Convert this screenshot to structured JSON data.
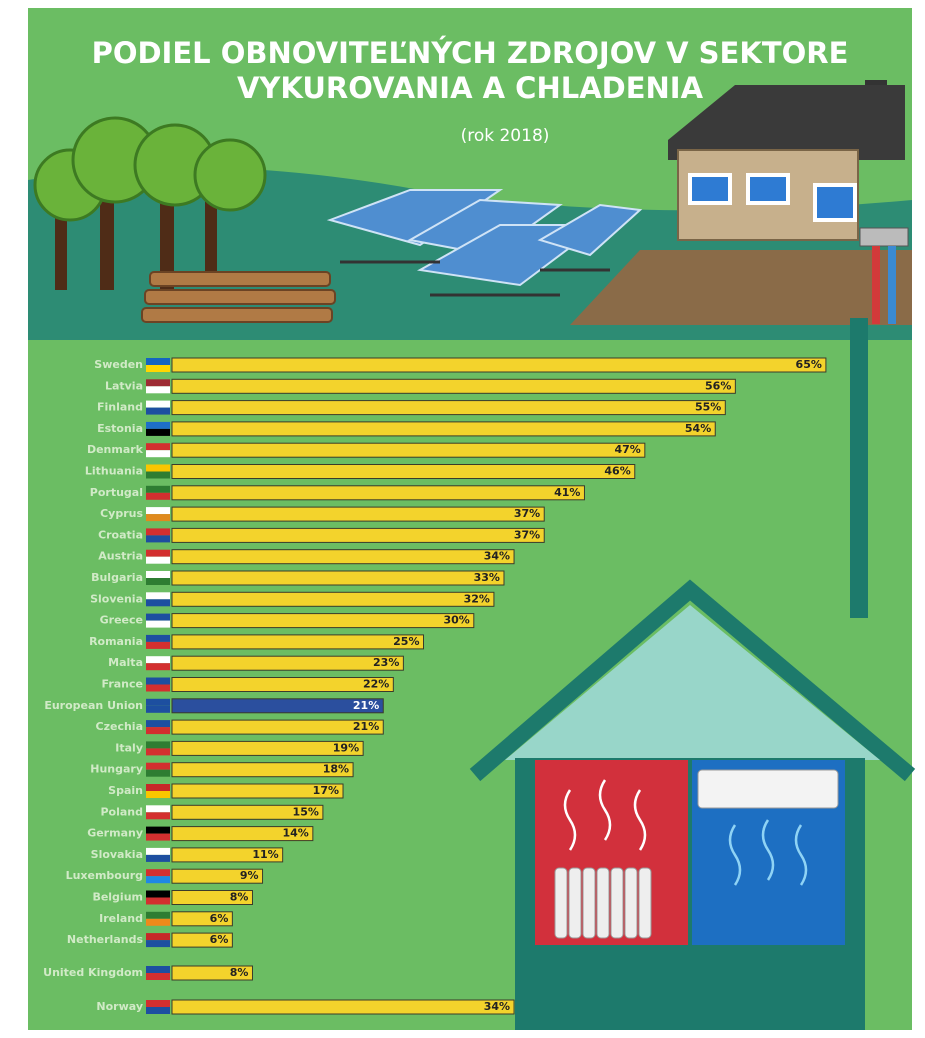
{
  "chart_data": {
    "type": "bar",
    "title": "PODIEL OBNOVITEĽNÝCH ZDROJOV V SEKTORE VYKUROVANIA A CHLADENIA",
    "subtitle": "(rok 2018)",
    "categories": [
      "Sweden",
      "Latvia",
      "Finland",
      "Estonia",
      "Denmark",
      "Lithuania",
      "Portugal",
      "Cyprus",
      "Croatia",
      "Austria",
      "Bulgaria",
      "Slovenia",
      "Greece",
      "Romania",
      "Malta",
      "France",
      "European Union",
      "Czechia",
      "Italy",
      "Hungary",
      "Spain",
      "Poland",
      "Germany",
      "Slovakia",
      "Luxembourg",
      "Belgium",
      "Ireland",
      "Netherlands",
      "United Kingdom",
      "Norway"
    ],
    "values": [
      65,
      56,
      55,
      54,
      47,
      46,
      41,
      37,
      37,
      34,
      33,
      32,
      30,
      25,
      23,
      22,
      21,
      21,
      19,
      18,
      17,
      15,
      14,
      11,
      9,
      8,
      6,
      6,
      8,
      34
    ],
    "value_labels": [
      "65%",
      "56%",
      "55%",
      "54%",
      "47%",
      "46%",
      "41%",
      "37%",
      "37%",
      "34%",
      "33%",
      "32%",
      "30%",
      "25%",
      "23%",
      "22%",
      "21%",
      "21%",
      "19%",
      "18%",
      "17%",
      "15%",
      "14%",
      "11%",
      "9%",
      "8%",
      "6%",
      "6%",
      "8%",
      "34%"
    ],
    "colors": [
      "#f3d32c",
      "#f3d32c",
      "#f3d32c",
      "#f3d32c",
      "#f3d32c",
      "#f3d32c",
      "#f3d32c",
      "#f3d32c",
      "#f3d32c",
      "#f3d32c",
      "#f3d32c",
      "#f3d32c",
      "#f3d32c",
      "#f3d32c",
      "#f3d32c",
      "#f3d32c",
      "#2b4f9e",
      "#f3d32c",
      "#f3d32c",
      "#f3d32c",
      "#f3d32c",
      "#f3d32c",
      "#f3d32c",
      "#f3d32c",
      "#f3d32c",
      "#f3d32c",
      "#f3d32c",
      "#f3d32c",
      "#f3d32c",
      "#f3d32c"
    ]
  }
}
